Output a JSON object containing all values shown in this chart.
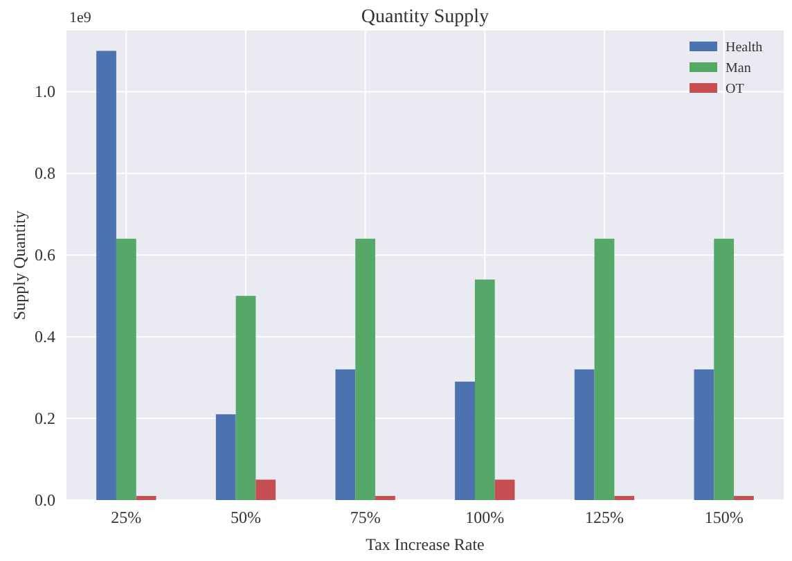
{
  "chart_data": {
    "type": "bar",
    "title": "Quantity Supply",
    "xlabel": "Tax Increase Rate",
    "ylabel": "Supply Quantity",
    "annotations": [
      "1e9"
    ],
    "categories": [
      "25%",
      "50%",
      "75%",
      "100%",
      "125%",
      "150%"
    ],
    "series": [
      {
        "name": "Health",
        "color": "#4c72b0",
        "values": [
          1.1,
          0.21,
          0.32,
          0.29,
          0.32,
          0.32
        ]
      },
      {
        "name": "Man",
        "color": "#55a868",
        "values": [
          0.64,
          0.5,
          0.64,
          0.54,
          0.64,
          0.64
        ]
      },
      {
        "name": "OT",
        "color": "#c44e52",
        "values": [
          0.01,
          0.05,
          0.01,
          0.05,
          0.01,
          0.01
        ]
      }
    ],
    "ylim": [
      0,
      1.15
    ],
    "yticks": [
      {
        "value": 0,
        "label": "0.0"
      },
      {
        "value": 0.2,
        "label": "0.2"
      },
      {
        "value": 0.4,
        "label": "0.4"
      },
      {
        "value": 0.6,
        "label": "0.6"
      },
      {
        "value": 0.8,
        "label": "0.8"
      },
      {
        "value": 1,
        "label": "1.0"
      }
    ],
    "grid": true,
    "legend": "top right"
  }
}
